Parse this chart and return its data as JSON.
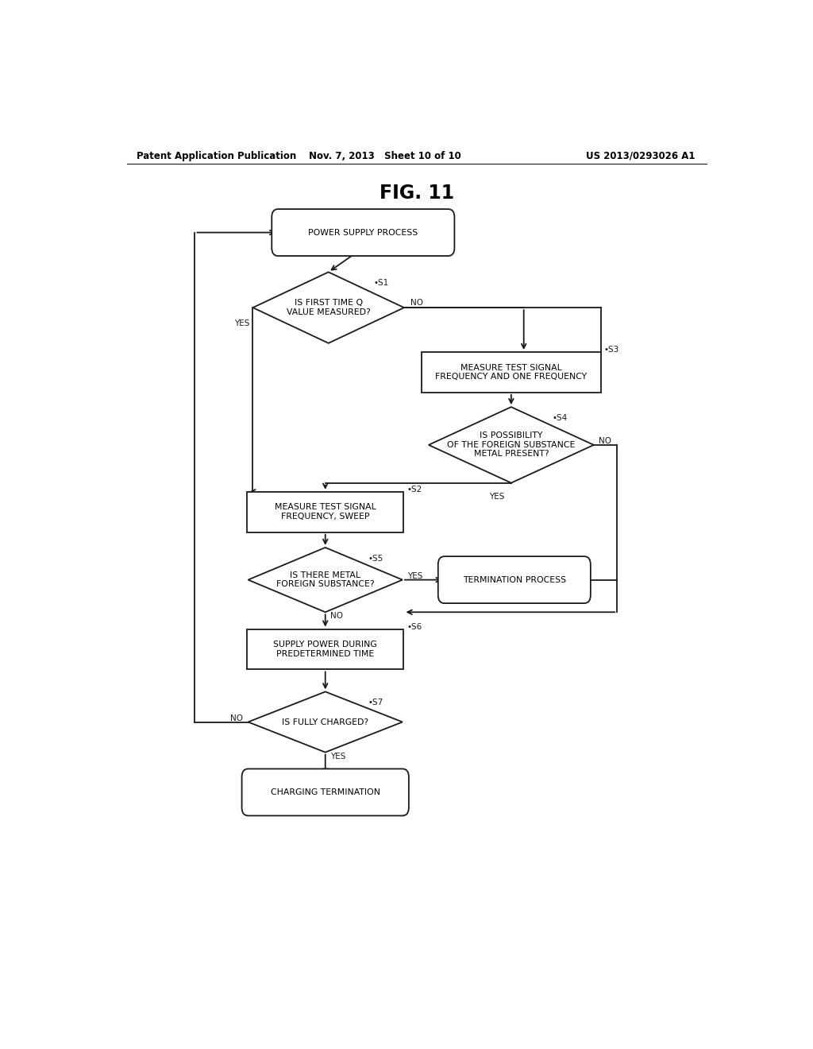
{
  "bg_color": "#ffffff",
  "line_color": "#1a1a1a",
  "title": "FIG. 11",
  "header_left": "Patent Application Publication",
  "header_mid": "Nov. 7, 2013   Sheet 10 of 10",
  "header_right": "US 2013/0293026 A1",
  "font_size_title": 17,
  "font_size_header": 8.5,
  "font_size_node": 7.8,
  "font_size_label": 7.5
}
